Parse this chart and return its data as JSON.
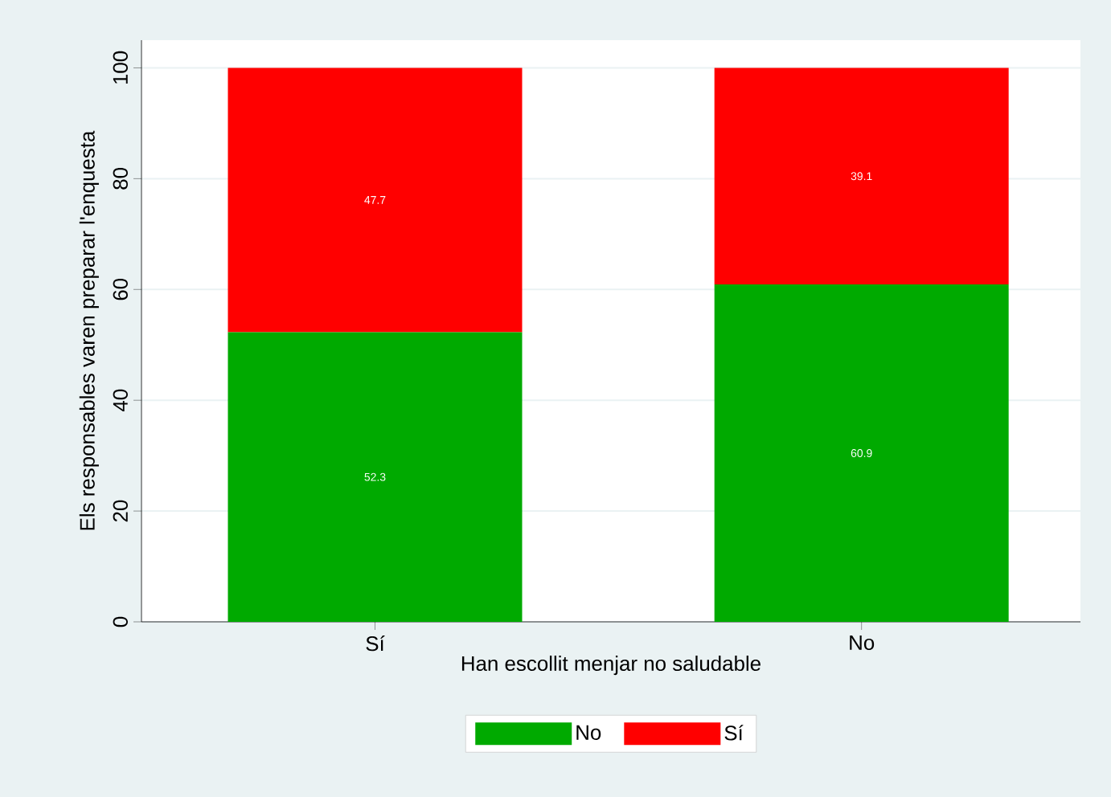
{
  "chart_data": {
    "type": "bar",
    "stacked": true,
    "categories": [
      "Sí",
      "No"
    ],
    "series": [
      {
        "name": "No",
        "color": "#00aa00",
        "values": [
          52.3,
          60.9
        ]
      },
      {
        "name": "Sí",
        "color": "#ff0000",
        "values": [
          47.7,
          39.1
        ]
      }
    ],
    "xlabel": "Han escollit menjar no saludable",
    "ylabel": "Els responsables varen preparar l'enquesta",
    "ylim": [
      0,
      105
    ],
    "yticks": [
      0,
      20,
      40,
      60,
      80,
      100
    ],
    "grid": "y",
    "legend": "bottom",
    "data_labels": true
  }
}
